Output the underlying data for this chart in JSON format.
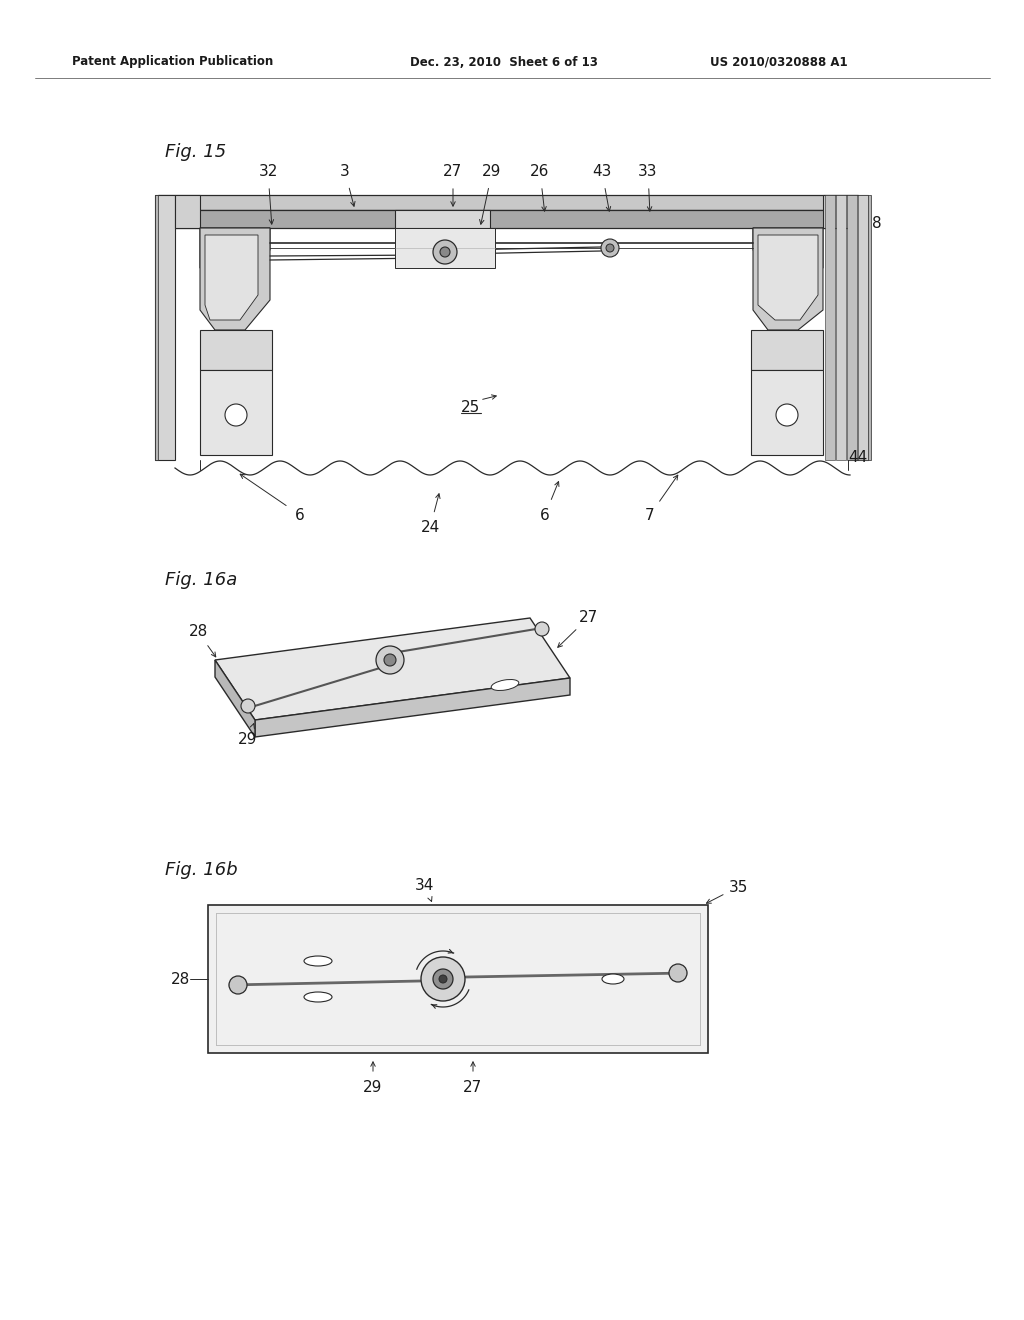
{
  "bg_color": "#ffffff",
  "header_left": "Patent Application Publication",
  "header_mid": "Dec. 23, 2010  Sheet 6 of 13",
  "header_right": "US 2010/0320888 A1",
  "line_color": "#2a2a2a",
  "text_color": "#1a1a1a",
  "fig15_label": "Fig. 15",
  "fig16a_label": "Fig. 16a",
  "fig16b_label": "Fig. 16b"
}
